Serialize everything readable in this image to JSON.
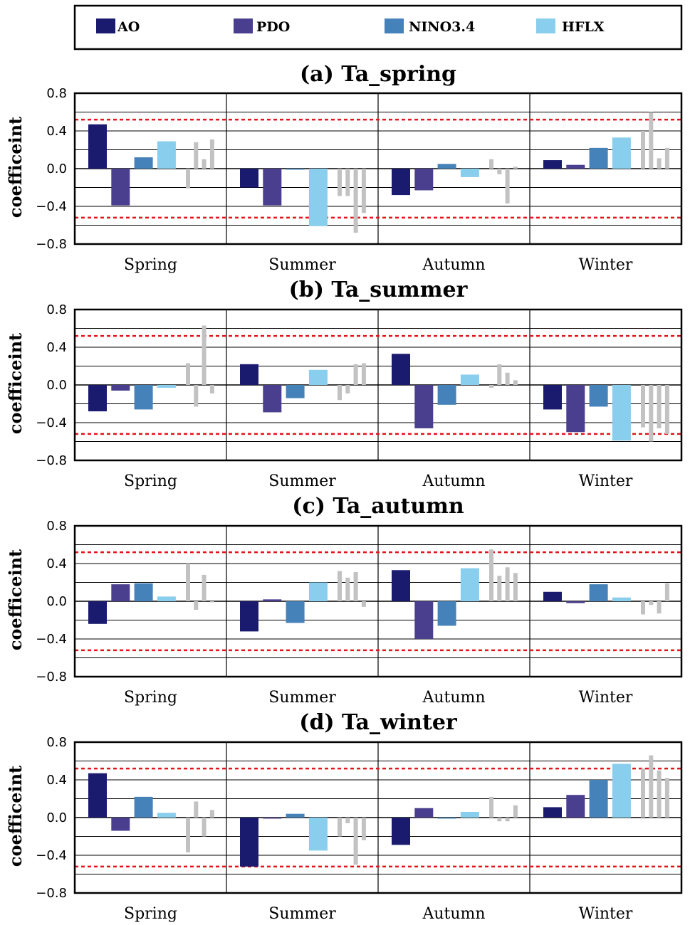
{
  "legend": [
    {
      "name": "AO",
      "color": "#1a1a6e"
    },
    {
      "name": "PDO",
      "color": "#4a3f8e"
    },
    {
      "name": "NINO3.4",
      "color": "#4582b9"
    },
    {
      "name": "HFLX",
      "color": "#89ceec"
    }
  ],
  "chart_data": [
    {
      "type": "bar",
      "title": "(a) Ta_spring",
      "ylabel": "coefficeint",
      "ylim": [
        -0.8,
        0.8
      ],
      "yticks": [
        "0.8",
        "0.4",
        "0.0",
        "−0.4",
        "−0.8"
      ],
      "significance": [
        0.52,
        -0.52
      ],
      "categories": [
        "Spring",
        "Summer",
        "Autumn",
        "Winter"
      ],
      "series": [
        {
          "name": "AO",
          "values": [
            0.47,
            -0.2,
            -0.28,
            0.09
          ]
        },
        {
          "name": "PDO",
          "values": [
            -0.39,
            -0.39,
            -0.23,
            0.04
          ]
        },
        {
          "name": "NINO3.4",
          "values": [
            0.12,
            0.0,
            0.05,
            0.22
          ]
        },
        {
          "name": "HFLX",
          "values": [
            0.29,
            -0.61,
            -0.09,
            0.33
          ]
        }
      ],
      "gray": [
        [
          -0.21,
          0.28,
          0.1,
          0.31
        ],
        [
          -0.29,
          -0.29,
          -0.68,
          -0.47
        ],
        [
          0.1,
          -0.06,
          -0.37,
          0.02
        ],
        [
          0.4,
          0.6,
          0.11,
          0.22
        ]
      ]
    },
    {
      "type": "bar",
      "title": "(b) Ta_summer",
      "ylabel": "coefficeint",
      "ylim": [
        -0.8,
        0.8
      ],
      "yticks": [
        "0.8",
        "0.4",
        "0.0",
        "−0.4",
        "−0.8"
      ],
      "significance": [
        0.52,
        -0.52
      ],
      "categories": [
        "Spring",
        "Summer",
        "Autumn",
        "Winter"
      ],
      "series": [
        {
          "name": "AO",
          "values": [
            -0.28,
            0.22,
            0.33,
            -0.26
          ]
        },
        {
          "name": "PDO",
          "values": [
            -0.06,
            -0.29,
            -0.46,
            -0.5
          ]
        },
        {
          "name": "NINO3.4",
          "values": [
            -0.26,
            -0.14,
            -0.21,
            -0.23
          ]
        },
        {
          "name": "HFLX",
          "values": [
            -0.03,
            0.16,
            0.11,
            -0.59
          ]
        }
      ],
      "gray": [
        [
          0.23,
          -0.23,
          0.63,
          -0.09
        ],
        [
          -0.16,
          -0.09,
          0.22,
          0.23
        ],
        [
          -0.03,
          0.22,
          0.13,
          0.05
        ],
        [
          -0.45,
          -0.6,
          -0.46,
          -0.52
        ]
      ]
    },
    {
      "type": "bar",
      "title": "(c) Ta_autumn",
      "ylabel": "coefficeint",
      "ylim": [
        -0.8,
        0.8
      ],
      "yticks": [
        "0.8",
        "0.4",
        "0.0",
        "−0.4",
        "−0.8"
      ],
      "significance": [
        0.52,
        -0.52
      ],
      "categories": [
        "Spring",
        "Summer",
        "Autumn",
        "Winter"
      ],
      "series": [
        {
          "name": "AO",
          "values": [
            -0.24,
            -0.32,
            0.33,
            0.1
          ]
        },
        {
          "name": "PDO",
          "values": [
            0.18,
            0.02,
            -0.4,
            -0.02
          ]
        },
        {
          "name": "NINO3.4",
          "values": [
            0.19,
            -0.23,
            -0.26,
            0.18
          ]
        },
        {
          "name": "HFLX",
          "values": [
            0.05,
            0.2,
            0.35,
            0.04
          ]
        }
      ],
      "gray": [
        [
          0.4,
          -0.09,
          0.28,
          0.0
        ],
        [
          0.32,
          0.25,
          0.31,
          -0.06
        ],
        [
          0.55,
          0.27,
          0.36,
          0.3
        ],
        [
          -0.14,
          -0.04,
          -0.13,
          0.19
        ]
      ]
    },
    {
      "type": "bar",
      "title": "(d) Ta_winter",
      "ylabel": "coefficeint",
      "ylim": [
        -0.8,
        0.8
      ],
      "yticks": [
        "0.8",
        "0.4",
        "0.0",
        "−0.4",
        "−0.8"
      ],
      "significance": [
        0.52,
        -0.52
      ],
      "categories": [
        "Spring",
        "Summer",
        "Autumn",
        "Winter"
      ],
      "series": [
        {
          "name": "AO",
          "values": [
            0.47,
            -0.52,
            -0.29,
            0.11
          ]
        },
        {
          "name": "PDO",
          "values": [
            -0.14,
            -0.01,
            0.1,
            0.24
          ]
        },
        {
          "name": "NINO3.4",
          "values": [
            0.22,
            0.04,
            -0.01,
            0.4
          ]
        },
        {
          "name": "HFLX",
          "values": [
            0.05,
            -0.35,
            0.06,
            0.57
          ]
        }
      ],
      "gray": [
        [
          -0.37,
          0.17,
          -0.2,
          0.08
        ],
        [
          -0.2,
          -0.06,
          -0.5,
          -0.24
        ],
        [
          0.22,
          -0.04,
          -0.04,
          0.13
        ],
        [
          0.52,
          0.66,
          0.5,
          0.42
        ]
      ]
    }
  ]
}
